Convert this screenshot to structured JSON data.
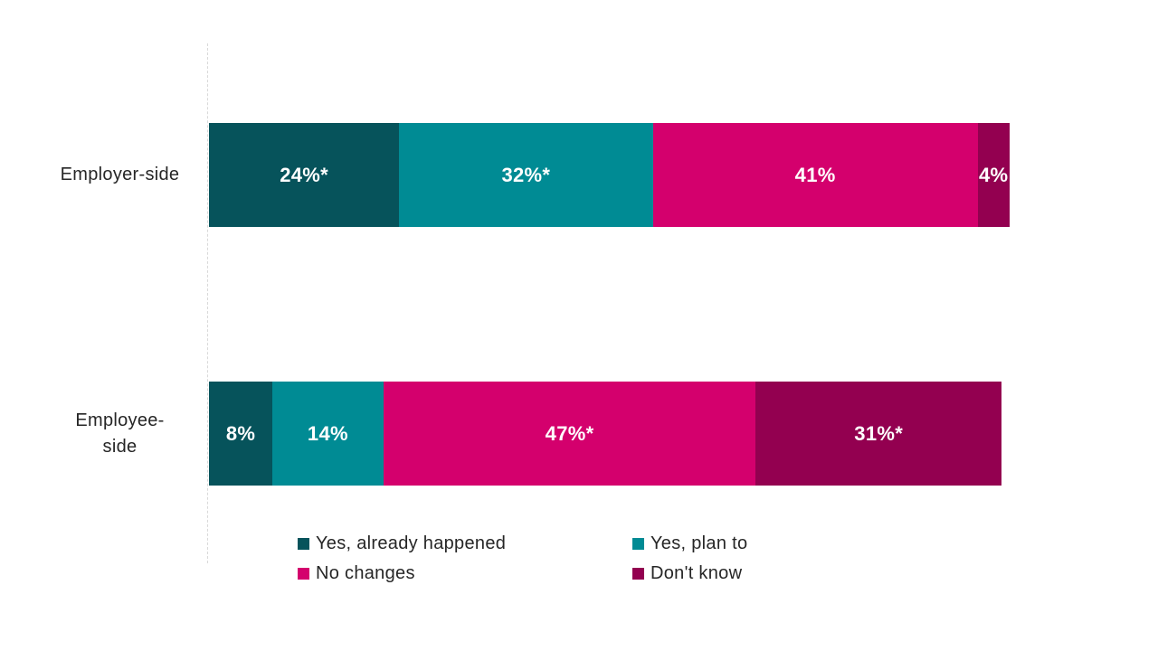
{
  "colors": {
    "already_happened": "#06535B",
    "plan_to": "#008B94",
    "no_changes": "#D4006D",
    "dont_know": "#930050",
    "axis_line": "#D9D9D9",
    "text": "#262626",
    "value_label_text": "#FFFFFF",
    "background": "#FFFFFF"
  },
  "chart_data": {
    "type": "bar",
    "subtype": "stacked-horizontal",
    "title": "",
    "xlabel": "",
    "ylabel": "",
    "xlim": [
      0,
      100
    ],
    "grid": false,
    "legend_position": "bottom",
    "categories": [
      "Employer-side",
      "Employee-side"
    ],
    "category_display": [
      "Employer-side",
      "Employee-\nside"
    ],
    "series": [
      {
        "name": "Yes, already happened",
        "color": "#06535B",
        "values": [
          24,
          8
        ],
        "labels": [
          "24%*",
          "8%"
        ]
      },
      {
        "name": "Yes, plan to",
        "color": "#008B94",
        "values": [
          32,
          14
        ],
        "labels": [
          "32%*",
          "14%"
        ]
      },
      {
        "name": "No changes",
        "color": "#D4006D",
        "values": [
          41,
          47
        ],
        "labels": [
          "41%",
          "47%*"
        ]
      },
      {
        "name": "Don't know",
        "color": "#930050",
        "values": [
          4,
          31
        ],
        "labels": [
          "4%",
          "31%*"
        ]
      }
    ]
  }
}
